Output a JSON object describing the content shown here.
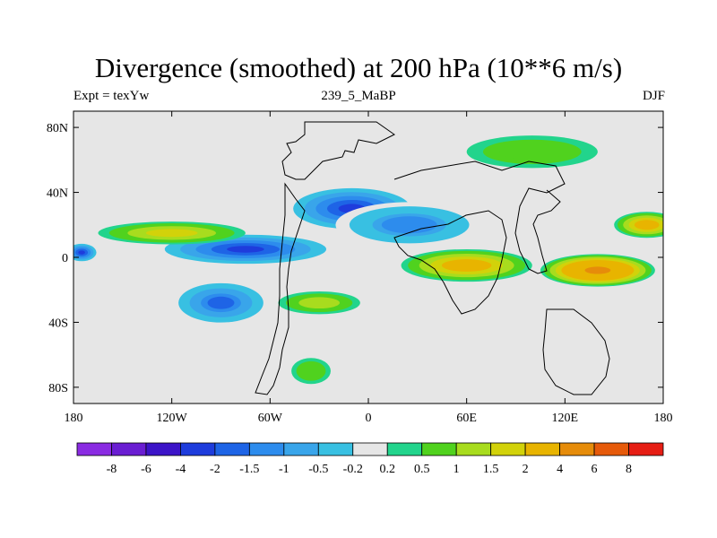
{
  "title": "Divergence (smoothed) at 200 hPa (10**6 m/s)",
  "subtitle_left": "Expt = texYw",
  "subtitle_center": "239_5_MaBP",
  "subtitle_right": "DJF",
  "map": {
    "projection": "equirectangular",
    "lon_range": [
      -180,
      180
    ],
    "lat_range": [
      -90,
      90
    ],
    "lat_ticks": [
      {
        "value": 80,
        "label": "80N"
      },
      {
        "value": 40,
        "label": "40N"
      },
      {
        "value": 0,
        "label": "0"
      },
      {
        "value": -40,
        "label": "40S"
      },
      {
        "value": -80,
        "label": "80S"
      }
    ],
    "lon_ticks": [
      {
        "value": -180,
        "label": "180"
      },
      {
        "value": -120,
        "label": "120W"
      },
      {
        "value": -60,
        "label": "60W"
      },
      {
        "value": 0,
        "label": "0"
      },
      {
        "value": 60,
        "label": "60E"
      },
      {
        "value": 120,
        "label": "120E"
      },
      {
        "value": 180,
        "label": "180"
      }
    ]
  },
  "colorbar": {
    "colors": [
      "#8a2be2",
      "#6a1ed2",
      "#3c14c8",
      "#1e3cdc",
      "#1e64e6",
      "#2d8ced",
      "#39a5ea",
      "#38c0e2",
      "#e6e6e6",
      "#22d48c",
      "#50d21e",
      "#a8dc1e",
      "#d2d20a",
      "#e8b400",
      "#e68c0a",
      "#e65a0a",
      "#e61e14"
    ],
    "labels": [
      "-8",
      "-6",
      "-4",
      "-2",
      "-1.5",
      "-1",
      "-0.5",
      "-0.2",
      "0.2",
      "0.5",
      "1",
      "1.5",
      "2",
      "4",
      "6",
      "8"
    ]
  },
  "chart_data": {
    "type": "heatmap",
    "title": "Divergence (smoothed) at 200 hPa (10**6 m/s)",
    "units": "10**6 m/s",
    "level": "200 hPa",
    "season": "DJF",
    "experiment": "texYw",
    "case": "239_5_MaBP",
    "levels": [
      -8,
      -6,
      -4,
      -2,
      -1.5,
      -1,
      -0.5,
      -0.2,
      0.2,
      0.5,
      1,
      1.5,
      2,
      4,
      6,
      8
    ],
    "features": [
      {
        "lon": -75,
        "lat": 5,
        "lon_half_width": 55,
        "lat_half_width": 10,
        "value": -2.5
      },
      {
        "lon": -10,
        "lat": 30,
        "lon_half_width": 40,
        "lat_half_width": 14,
        "value": -2.5
      },
      {
        "lon": -175,
        "lat": 3,
        "lon_half_width": 10,
        "lat_half_width": 6,
        "value": -2.5
      },
      {
        "lon": -90,
        "lat": -28,
        "lon_half_width": 30,
        "lat_half_width": 14,
        "value": -1.8
      },
      {
        "lon": 25,
        "lat": 20,
        "lon_half_width": 45,
        "lat_half_width": 14,
        "value": -1.2
      },
      {
        "lon": 60,
        "lat": -5,
        "lon_half_width": 40,
        "lat_half_width": 10,
        "value": 2.5
      },
      {
        "lon": 140,
        "lat": -8,
        "lon_half_width": 35,
        "lat_half_width": 10,
        "value": 4.5
      },
      {
        "lon": 170,
        "lat": 20,
        "lon_half_width": 20,
        "lat_half_width": 8,
        "value": 2.5
      },
      {
        "lon": -120,
        "lat": 15,
        "lon_half_width": 45,
        "lat_half_width": 7,
        "value": 1.6
      },
      {
        "lon": -30,
        "lat": -28,
        "lon_half_width": 25,
        "lat_half_width": 7,
        "value": 1.2
      },
      {
        "lon": 100,
        "lat": 65,
        "lon_half_width": 40,
        "lat_half_width": 10,
        "value": 0.8
      },
      {
        "lon": -35,
        "lat": -70,
        "lon_half_width": 12,
        "lat_half_width": 8,
        "value": 0.8
      }
    ]
  }
}
